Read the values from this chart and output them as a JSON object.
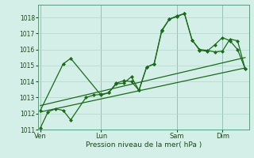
{
  "background_color": "#d4eee8",
  "grid_color": "#b0d8cc",
  "line_color": "#1a6b1a",
  "xlabel": "Pression niveau de la mer( hPa )",
  "ylim": [
    1011,
    1018.8
  ],
  "yticks": [
    1011,
    1012,
    1013,
    1014,
    1015,
    1016,
    1017,
    1018
  ],
  "day_labels": [
    "Ven",
    "Lun",
    "Sam",
    "Dim"
  ],
  "day_positions": [
    0,
    8,
    18,
    24
  ],
  "xlim": [
    -0.3,
    27.5
  ],
  "series1_x": [
    0,
    1,
    2,
    3,
    4,
    6,
    7,
    8,
    9,
    10,
    11,
    12,
    13,
    14,
    15,
    16,
    17,
    18,
    19,
    20,
    21,
    22,
    23,
    24,
    25,
    26,
    27
  ],
  "series1_y": [
    1011.1,
    1012.1,
    1012.3,
    1012.2,
    1011.6,
    1013.0,
    1013.15,
    1013.2,
    1013.3,
    1013.85,
    1013.9,
    1014.3,
    1013.45,
    1014.9,
    1015.1,
    1017.2,
    1017.9,
    1018.05,
    1018.25,
    1016.6,
    1016.0,
    1015.95,
    1015.85,
    1015.9,
    1016.65,
    1016.55,
    1014.8
  ],
  "series2_x": [
    0,
    3,
    4,
    8,
    9,
    10,
    11,
    12,
    13,
    14,
    15,
    16,
    17,
    18,
    19,
    20,
    21,
    22,
    23,
    24,
    25,
    26,
    27
  ],
  "series2_y": [
    1012.2,
    1015.1,
    1015.45,
    1013.15,
    1013.3,
    1013.9,
    1014.05,
    1014.0,
    1013.45,
    1014.9,
    1015.1,
    1017.15,
    1017.9,
    1018.1,
    1018.25,
    1016.6,
    1015.95,
    1015.9,
    1016.3,
    1016.75,
    1016.55,
    1016.0,
    1014.8
  ],
  "series3_x": [
    0,
    27
  ],
  "series3_y": [
    1012.1,
    1014.85
  ],
  "series4_x": [
    0,
    27
  ],
  "series4_y": [
    1012.5,
    1015.5
  ]
}
